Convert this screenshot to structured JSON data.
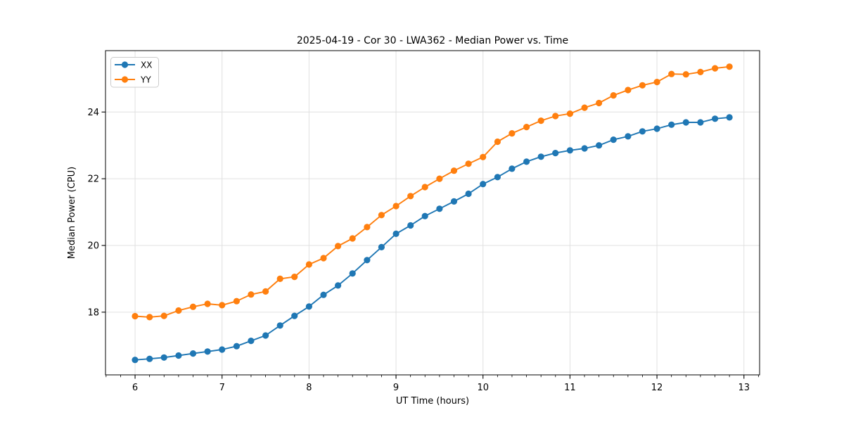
{
  "figure": {
    "background": "#ffffff"
  },
  "colors": {
    "grid": "#e0e0e0",
    "spine": "#000000",
    "tick": "#000000",
    "legend_border": "#cccccc",
    "legend_bg": "#ffffff",
    "series_xx": "#1f77b4",
    "series_yy": "#ff7f0e"
  },
  "chart_data": {
    "type": "line",
    "title": "2025-04-19 - Cor 30 - LWA362 - Median Power vs. Time",
    "xlabel": "UT Time (hours)",
    "ylabel": "Median Power (CPU)",
    "xlim": [
      5.66,
      13.18
    ],
    "ylim": [
      16.12,
      25.84
    ],
    "xticks": [
      6,
      7,
      8,
      9,
      10,
      11,
      12,
      13
    ],
    "yticks": [
      18,
      20,
      22,
      24
    ],
    "x_minor_per_major": 6,
    "grid": true,
    "legend_position": "upper-left",
    "legend_entries": [
      "XX",
      "YY"
    ],
    "x": [
      6.0,
      6.167,
      6.333,
      6.5,
      6.667,
      6.833,
      7.0,
      7.167,
      7.333,
      7.5,
      7.667,
      7.833,
      8.0,
      8.167,
      8.333,
      8.5,
      8.667,
      8.833,
      9.0,
      9.167,
      9.333,
      9.5,
      9.667,
      9.833,
      10.0,
      10.167,
      10.333,
      10.5,
      10.667,
      10.833,
      11.0,
      11.167,
      11.333,
      11.5,
      11.667,
      11.833,
      12.0,
      12.167,
      12.333,
      12.5,
      12.667,
      12.833
    ],
    "series": [
      {
        "name": "XX",
        "color": "#1f77b4",
        "marker": "circle",
        "values": [
          16.57,
          16.6,
          16.64,
          16.7,
          16.76,
          16.82,
          16.88,
          16.98,
          17.14,
          17.3,
          17.6,
          17.89,
          18.17,
          18.52,
          18.8,
          19.16,
          19.56,
          19.95,
          20.35,
          20.6,
          20.88,
          21.1,
          21.32,
          21.55,
          21.84,
          22.05,
          22.3,
          22.51,
          22.66,
          22.77,
          22.85,
          22.91,
          23.0,
          23.17,
          23.27,
          23.42,
          23.5,
          23.62,
          23.69,
          23.69,
          23.8,
          23.84
        ]
      },
      {
        "name": "YY",
        "color": "#ff7f0e",
        "marker": "circle",
        "values": [
          17.88,
          17.85,
          17.89,
          18.05,
          18.16,
          18.25,
          18.21,
          18.33,
          18.53,
          18.62,
          19.0,
          19.06,
          19.43,
          19.62,
          19.98,
          20.21,
          20.55,
          20.91,
          21.18,
          21.48,
          21.75,
          22.0,
          22.24,
          22.45,
          22.65,
          23.11,
          23.36,
          23.55,
          23.74,
          23.88,
          23.95,
          24.13,
          24.27,
          24.5,
          24.66,
          24.8,
          24.9,
          25.14,
          25.13,
          25.2,
          25.31,
          25.36
        ]
      }
    ]
  }
}
